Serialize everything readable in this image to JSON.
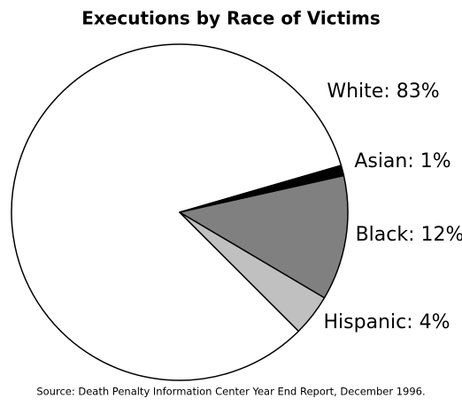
{
  "chart_data": {
    "type": "pie",
    "title": "Executions by Race of Victims",
    "values": [
      83,
      1,
      12,
      4
    ],
    "value_labels": [
      "White: 83%",
      "Asian: 1%",
      "Black: 12%",
      "Hispanic: 4%"
    ],
    "colors": [
      "#ffffff",
      "#000000",
      "#808080",
      "#c0c0c0"
    ],
    "source": "Source: Death Penalty Information Center Year End Report, December 1996."
  }
}
